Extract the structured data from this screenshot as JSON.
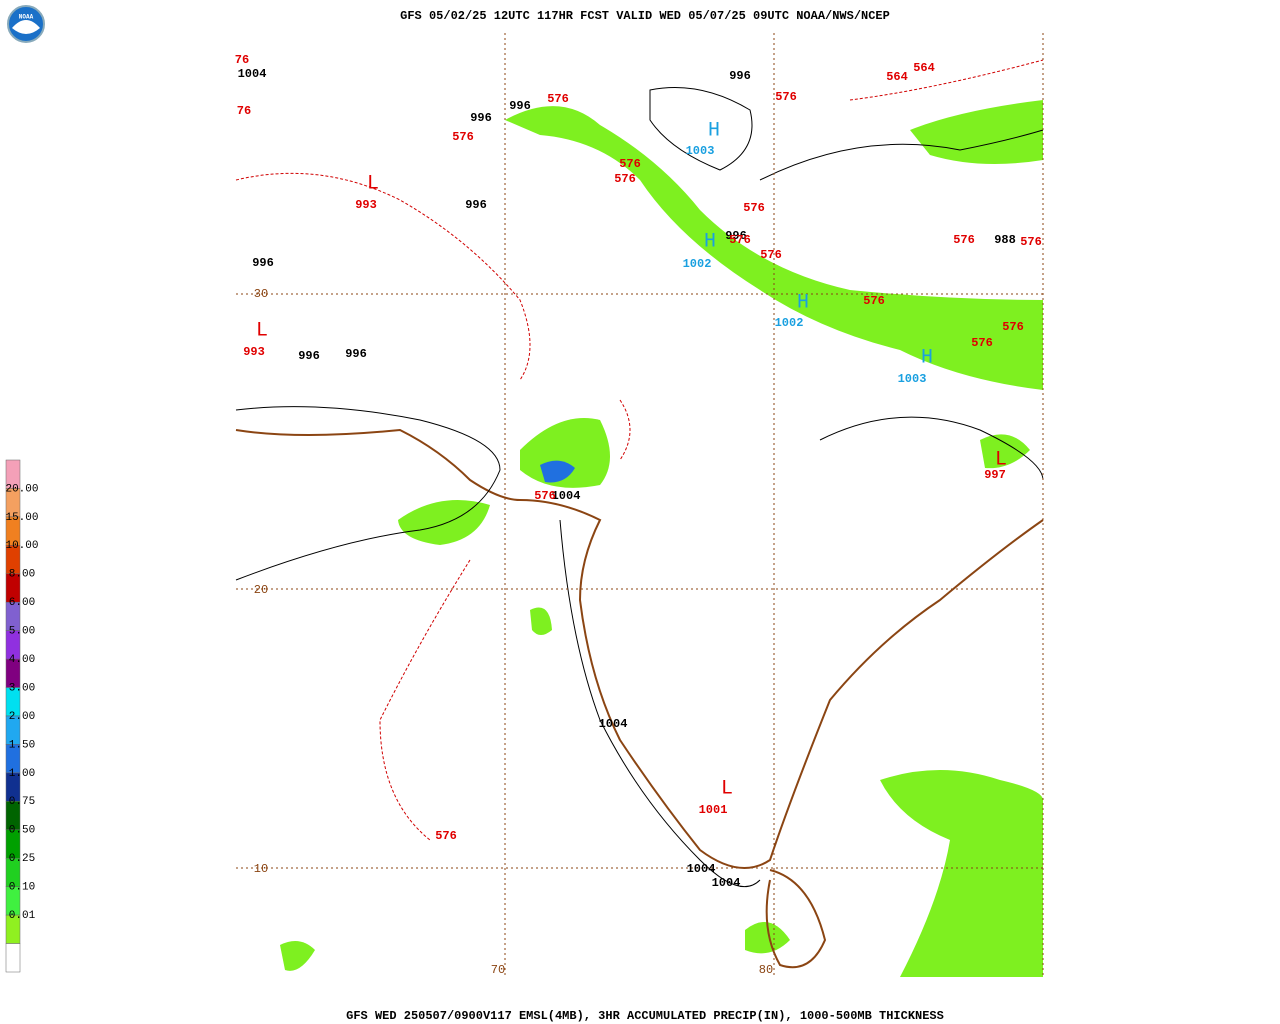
{
  "header": {
    "logo": "NOAA",
    "title": "GFS 05/02/25 12UTC 117HR FCST VALID WED 05/07/25 09UTC NOAA/NWS/NCEP"
  },
  "footer": {
    "text": "GFS WED 250507/0900V117 EMSL(4MB), 3HR ACCUMULATED PRECIP(IN), 1000-500MB THICKNESS"
  },
  "legend": {
    "labels": [
      "20.00",
      "15.00",
      "10.00",
      "8.00",
      "6.00",
      "5.00",
      "4.00",
      "3.00",
      "2.00",
      "1.50",
      "1.00",
      "0.75",
      "0.50",
      "0.25",
      "0.10",
      "0.01"
    ],
    "colors": [
      "#f4a0b8",
      "#f4a060",
      "#f08020",
      "#e04000",
      "#c00000",
      "#8060d0",
      "#9030e0",
      "#800080",
      "#00e0f0",
      "#20a8f0",
      "#2070e0",
      "#103090",
      "#006400",
      "#00a000",
      "#20d020",
      "#40f040",
      "#90f020",
      "#ffffff"
    ]
  },
  "map": {
    "grid_labels": [
      "30",
      "20",
      "10",
      "70",
      "80"
    ],
    "pressure_labels": [
      "1004",
      "996",
      "996",
      "996",
      "996",
      "996",
      "996",
      "988",
      "996",
      "996",
      "1004",
      "1004",
      "1004",
      "1004"
    ],
    "thickness_labels": [
      "76",
      "76",
      "576",
      "576",
      "564",
      "564",
      "576",
      "576",
      "576",
      "576",
      "576",
      "576",
      "576",
      "576",
      "576",
      "576",
      "576",
      "576",
      "576"
    ],
    "highs": [
      {
        "symbol": "H",
        "value": "1003"
      },
      {
        "symbol": "H",
        "value": "1002"
      },
      {
        "symbol": "H",
        "value": "1002"
      },
      {
        "symbol": "H",
        "value": "1003"
      }
    ],
    "lows": [
      {
        "symbol": "L",
        "value": "993"
      },
      {
        "symbol": "L",
        "value": "993"
      },
      {
        "symbol": "L",
        "value": "1001"
      },
      {
        "symbol": "L",
        "value": "997"
      }
    ]
  }
}
